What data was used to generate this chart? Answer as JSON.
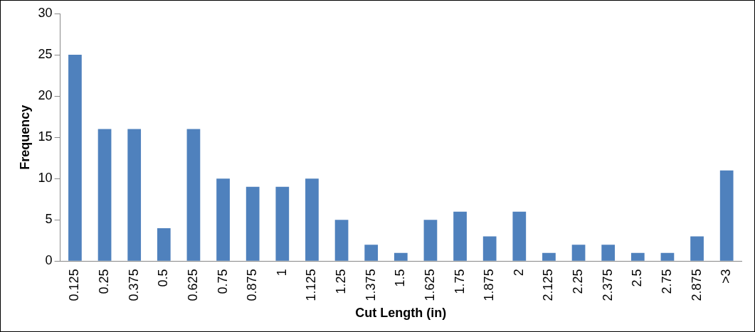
{
  "chart_data": {
    "type": "bar",
    "xlabel": "Cut Length (in)",
    "ylabel": "Frequency",
    "categories": [
      "0.125",
      "0.25",
      "0.375",
      "0.5",
      "0.625",
      "0.75",
      "0.875",
      "1",
      "1.125",
      "1.25",
      "1.375",
      "1.5",
      "1.625",
      "1.75",
      "1.875",
      "2",
      "2.125",
      "2.25",
      "2.375",
      "2.5",
      "2.75",
      "2.875",
      ">3"
    ],
    "values": [
      25,
      16,
      16,
      4,
      16,
      10,
      9,
      9,
      10,
      5,
      2,
      1,
      5,
      6,
      3,
      6,
      1,
      2,
      2,
      1,
      1,
      3,
      11
    ],
    "color": "#4f81bd",
    "ylim": [
      0,
      30
    ],
    "yticks": [
      0,
      5,
      10,
      15,
      20,
      25,
      30
    ],
    "grid": false,
    "legend": false
  }
}
